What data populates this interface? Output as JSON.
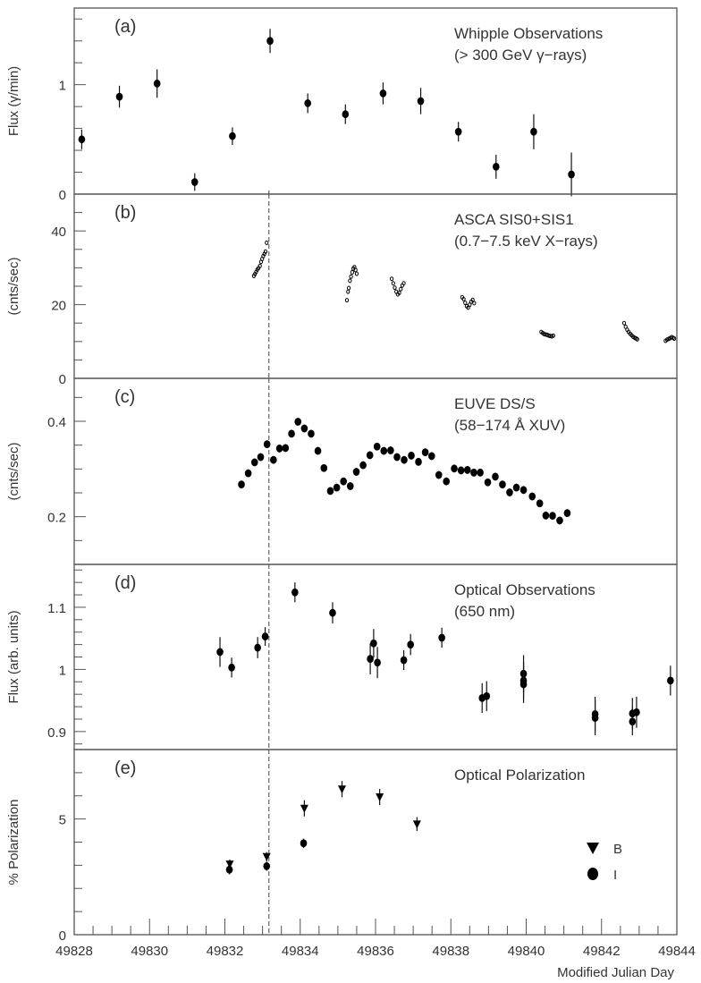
{
  "chart_data": {
    "type": "scatter",
    "xlabel": "Modified Julian Day",
    "xlim": [
      49828,
      49844
    ],
    "xticks": [
      "49828",
      "49830",
      "49832",
      "49834",
      "49836",
      "49838",
      "49840",
      "49842",
      "49844"
    ],
    "flare_marker_mjd": 49833.17,
    "panels": [
      {
        "id": "a",
        "label": "(a)",
        "title": [
          "Whipple Observations",
          "(> 300 GeV γ−rays)"
        ],
        "ylabel": "Flux (γ/min)",
        "ylim": [
          0,
          1.7
        ],
        "minor_step": 0.2,
        "yticks": [
          0,
          1
        ],
        "ytick_labels": [
          "0",
          "1"
        ],
        "series": [
          {
            "name": "Whipple",
            "marker": "circle",
            "x": [
              49828.2,
              49829.2,
              49830.2,
              49831.2,
              49832.2,
              49833.2,
              49834.2,
              49835.2,
              49836.2,
              49837.2,
              49838.2,
              49839.2,
              49840.2,
              49841.2
            ],
            "y": [
              0.5,
              0.89,
              1.01,
              0.11,
              0.53,
              1.4,
              0.83,
              0.73,
              0.92,
              0.85,
              0.57,
              0.25,
              0.57,
              0.18
            ],
            "err": [
              0.09,
              0.1,
              0.13,
              0.08,
              0.08,
              0.11,
              0.09,
              0.09,
              0.1,
              0.12,
              0.09,
              0.11,
              0.16,
              0.2
            ]
          }
        ]
      },
      {
        "id": "b",
        "label": "(b)",
        "title": [
          "ASCA SIS0+SIS1",
          "(0.7−7.5 keV X−rays)"
        ],
        "ylabel": "(cnts/sec)",
        "ylim": [
          0,
          50
        ],
        "minor_step": 5,
        "yticks": [
          0,
          20,
          40
        ],
        "ytick_labels": [
          "0",
          "20",
          "40"
        ],
        "series": [
          {
            "name": "ASCA",
            "marker": "open-circle",
            "points": [
              [
                49832.77,
                27.8
              ],
              [
                49832.8,
                28.3
              ],
              [
                49832.83,
                28.9
              ],
              [
                49832.86,
                29.5
              ],
              [
                49832.89,
                29.9
              ],
              [
                49832.93,
                30.5
              ],
              [
                49832.96,
                31.6
              ],
              [
                49832.99,
                32.4
              ],
              [
                49833.02,
                33.2
              ],
              [
                49833.05,
                33.8
              ],
              [
                49833.08,
                34.4
              ],
              [
                49833.11,
                36.8
              ],
              [
                49835.24,
                21.2
              ],
              [
                49835.27,
                23.5
              ],
              [
                49835.29,
                24.5
              ],
              [
                49835.32,
                26.5
              ],
              [
                49835.35,
                27.6
              ],
              [
                49835.38,
                28.8
              ],
              [
                49835.41,
                29.8
              ],
              [
                49835.44,
                30.2
              ],
              [
                49835.47,
                29.4
              ],
              [
                49835.5,
                28.4
              ],
              [
                49836.43,
                27.0
              ],
              [
                49836.47,
                25.8
              ],
              [
                49836.51,
                24.6
              ],
              [
                49836.55,
                23.5
              ],
              [
                49836.59,
                22.8
              ],
              [
                49836.63,
                23.2
              ],
              [
                49836.67,
                24.2
              ],
              [
                49836.71,
                25.2
              ],
              [
                49836.75,
                25.8
              ],
              [
                49838.3,
                22.0
              ],
              [
                49838.34,
                21.5
              ],
              [
                49838.38,
                20.5
              ],
              [
                49838.42,
                19.6
              ],
              [
                49838.46,
                19.2
              ],
              [
                49838.5,
                20.0
              ],
              [
                49838.54,
                20.8
              ],
              [
                49838.58,
                21.3
              ],
              [
                49838.62,
                20.4
              ],
              [
                49840.4,
                12.6
              ],
              [
                49840.44,
                12.3
              ],
              [
                49840.48,
                12.0
              ],
              [
                49840.52,
                11.9
              ],
              [
                49840.56,
                11.8
              ],
              [
                49840.6,
                11.6
              ],
              [
                49840.64,
                11.5
              ],
              [
                49840.68,
                11.4
              ],
              [
                49840.72,
                11.6
              ],
              [
                49842.6,
                15.0
              ],
              [
                49842.64,
                14.0
              ],
              [
                49842.68,
                13.2
              ],
              [
                49842.72,
                12.6
              ],
              [
                49842.76,
                12.1
              ],
              [
                49842.8,
                11.7
              ],
              [
                49842.84,
                11.3
              ],
              [
                49842.88,
                11.0
              ],
              [
                49842.92,
                10.8
              ],
              [
                49842.95,
                10.6
              ],
              [
                49843.7,
                10.2
              ],
              [
                49843.74,
                10.5
              ],
              [
                49843.78,
                10.7
              ],
              [
                49843.82,
                10.9
              ],
              [
                49843.86,
                11.2
              ],
              [
                49843.9,
                11.0
              ],
              [
                49843.93,
                10.8
              ]
            ]
          }
        ]
      },
      {
        "id": "c",
        "label": "(c)",
        "title": [
          "EUVE DS/S",
          "(58−174 Å XUV)"
        ],
        "ylabel": "(cnts/sec)",
        "ylim": [
          0.1,
          0.49
        ],
        "minor_step": 0.05,
        "yticks": [
          0.2,
          0.4
        ],
        "ytick_labels": [
          "0.2",
          "0.4"
        ],
        "series": [
          {
            "name": "EUVE",
            "marker": "circle",
            "x": [
              49832.44,
              49832.62,
              49832.79,
              49832.95,
              49833.12,
              49833.29,
              49833.45,
              49833.61,
              49833.77,
              49833.94,
              49834.11,
              49834.29,
              49834.47,
              49834.63,
              49834.8,
              49834.97,
              49835.15,
              49835.33,
              49835.49,
              49835.67,
              49835.85,
              49836.04,
              49836.22,
              49836.4,
              49836.57,
              49836.76,
              49836.95,
              49837.14,
              49837.32,
              49837.49,
              49837.68,
              49837.88,
              49838.09,
              49838.27,
              49838.44,
              49838.61,
              49838.78,
              49838.98,
              49839.18,
              49839.37,
              49839.56,
              49839.74,
              49839.93,
              49840.16,
              49840.36,
              49840.52,
              49840.7,
              49840.89,
              49841.09
            ],
            "y": [
              0.2675,
              0.291,
              0.314,
              0.325,
              0.352,
              0.319,
              0.343,
              0.344,
              0.374,
              0.399,
              0.385,
              0.374,
              0.338,
              0.302,
              0.254,
              0.261,
              0.274,
              0.264,
              0.294,
              0.308,
              0.329,
              0.347,
              0.338,
              0.339,
              0.325,
              0.319,
              0.328,
              0.315,
              0.335,
              0.327,
              0.2875,
              0.274,
              0.301,
              0.297,
              0.298,
              0.2925,
              0.2925,
              0.272,
              0.284,
              0.2675,
              0.251,
              0.261,
              0.256,
              0.2425,
              0.228,
              0.2025,
              0.202,
              0.192,
              0.2075
            ],
            "err_all": 0.008
          }
        ]
      },
      {
        "id": "d",
        "label": "(d)",
        "title": [
          "Optical Observations",
          "(650 nm)"
        ],
        "ylabel": "Flux (arb. units)",
        "ylim": [
          0.871,
          1.169
        ],
        "minor_step": 0.02,
        "yticks": [
          0.9,
          1.0,
          1.1
        ],
        "ytick_labels": [
          "0.9",
          "1",
          "1.1"
        ],
        "series": [
          {
            "name": "Optical 650 nm",
            "marker": "circle",
            "x": [
              49831.87,
              49832.18,
              49832.87,
              49833.07,
              49833.86,
              49834.86,
              49835.86,
              49835.95,
              49836.05,
              49836.75,
              49836.93,
              49837.76,
              49838.83,
              49838.95,
              49839.93,
              49839.93,
              49839.93,
              49841.83,
              49841.83,
              49842.82,
              49842.82,
              49842.93,
              49843.83
            ],
            "y": [
              1.028,
              1.003,
              1.035,
              1.053,
              1.124,
              1.091,
              1.017,
              1.042,
              1.011,
              1.015,
              1.04,
              1.051,
              0.954,
              0.957,
              0.993,
              0.982,
              0.976,
              0.928,
              0.922,
              0.916,
              0.929,
              0.931,
              0.982
            ],
            "err": [
              0.024,
              0.016,
              0.017,
              0.015,
              0.016,
              0.017,
              0.025,
              0.023,
              0.025,
              0.016,
              0.017,
              0.016,
              0.024,
              0.024,
              0.03,
              0.03,
              0.03,
              0.028,
              0.028,
              0.022,
              0.025,
              0.025,
              0.024
            ]
          }
        ]
      },
      {
        "id": "e",
        "label": "(e)",
        "title": [
          "Optical Polarization"
        ],
        "ylabel": "% Polarization",
        "ylim": [
          0,
          8
        ],
        "minor_step": 1,
        "yticks": [
          0,
          5
        ],
        "ytick_labels": [
          "0",
          "5"
        ],
        "series": [
          {
            "name": "B",
            "marker": "triangle-down",
            "x": [
              49832.13,
              49833.11,
              49834.11,
              49835.11,
              49836.11,
              49837.1
            ],
            "y": [
              3.05,
              3.37,
              5.46,
              6.29,
              5.95,
              4.78
            ],
            "err": [
              0.2,
              0.2,
              0.35,
              0.35,
              0.35,
              0.3
            ]
          },
          {
            "name": "I",
            "marker": "circle",
            "x": [
              49832.12,
              49833.11,
              49834.09
            ],
            "y": [
              2.81,
              2.96,
              3.95
            ],
            "err": [
              0.2,
              0.2,
              0.2
            ]
          }
        ],
        "legend": {
          "placement": "right",
          "entries": [
            "B",
            "I"
          ]
        }
      }
    ]
  }
}
